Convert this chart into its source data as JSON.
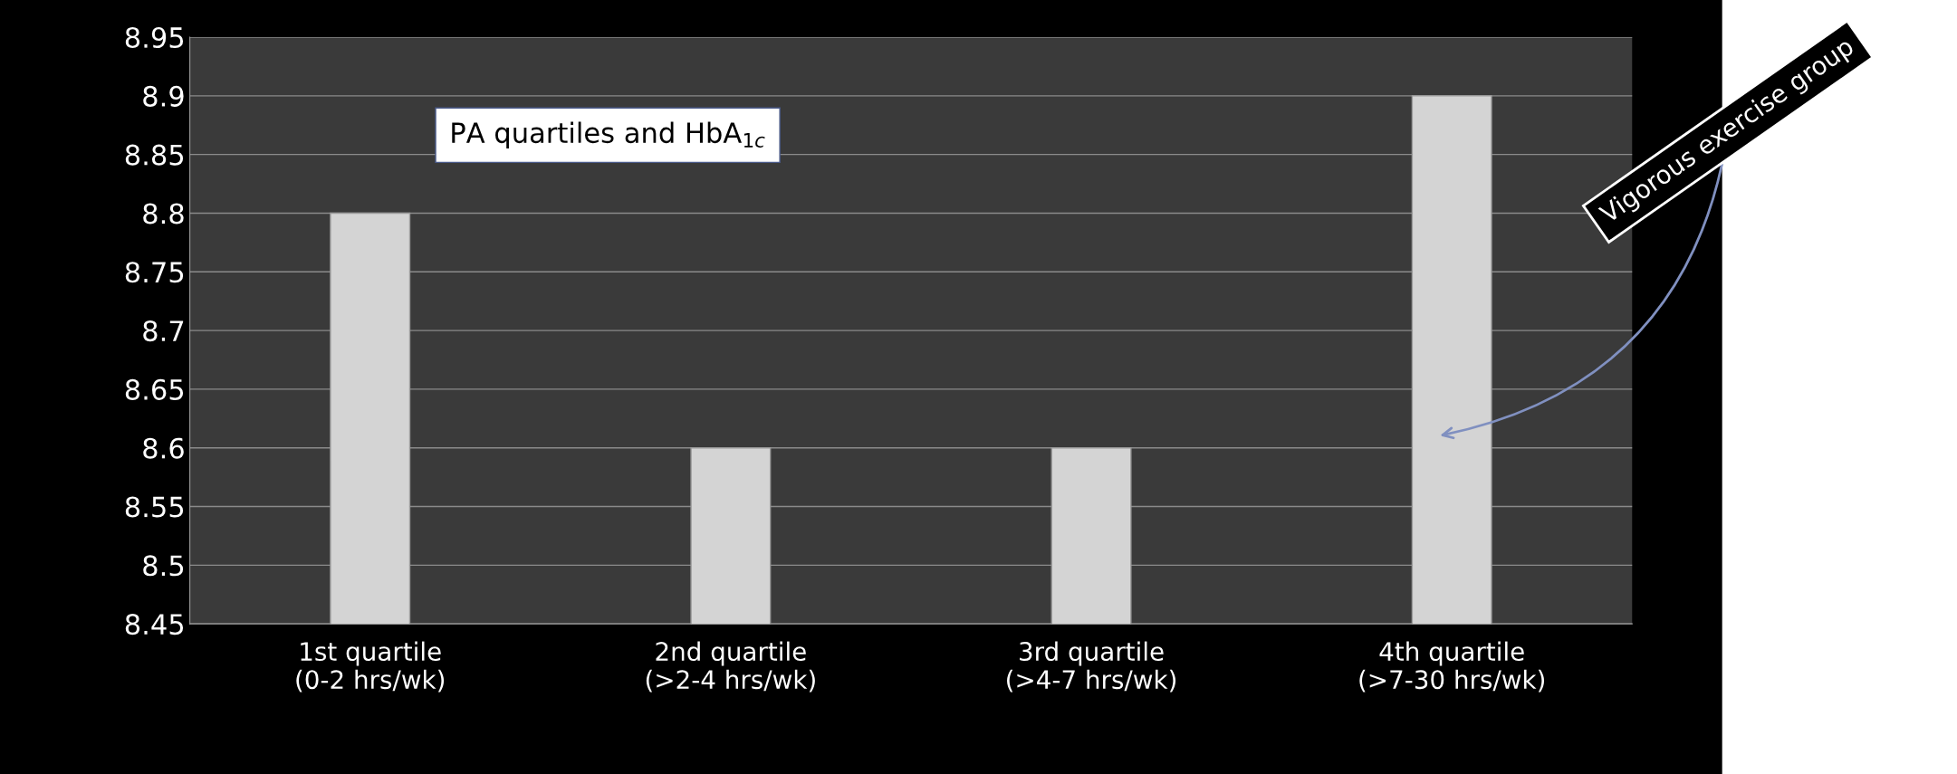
{
  "chart_data": {
    "type": "bar",
    "title": "PA quartiles and HbA$_{1c}$",
    "categories": [
      "1st quartile\n(0-2 hrs/wk)",
      "2nd quartile\n(>2-4 hrs/wk)",
      "3rd quartile\n(>4-7 hrs/wk)",
      "4th quartile\n(>7-30 hrs/wk)"
    ],
    "values": [
      8.8,
      8.6,
      8.6,
      8.9
    ],
    "color": "#d4d4d4",
    "ylim": [
      8.45,
      8.95
    ],
    "yticks": [
      8.45,
      8.5,
      8.55,
      8.6,
      8.65,
      8.7,
      8.75,
      8.8,
      8.85,
      8.9,
      8.95
    ],
    "grid": "y",
    "annotations": [
      "Vigorous exercise group"
    ]
  }
}
